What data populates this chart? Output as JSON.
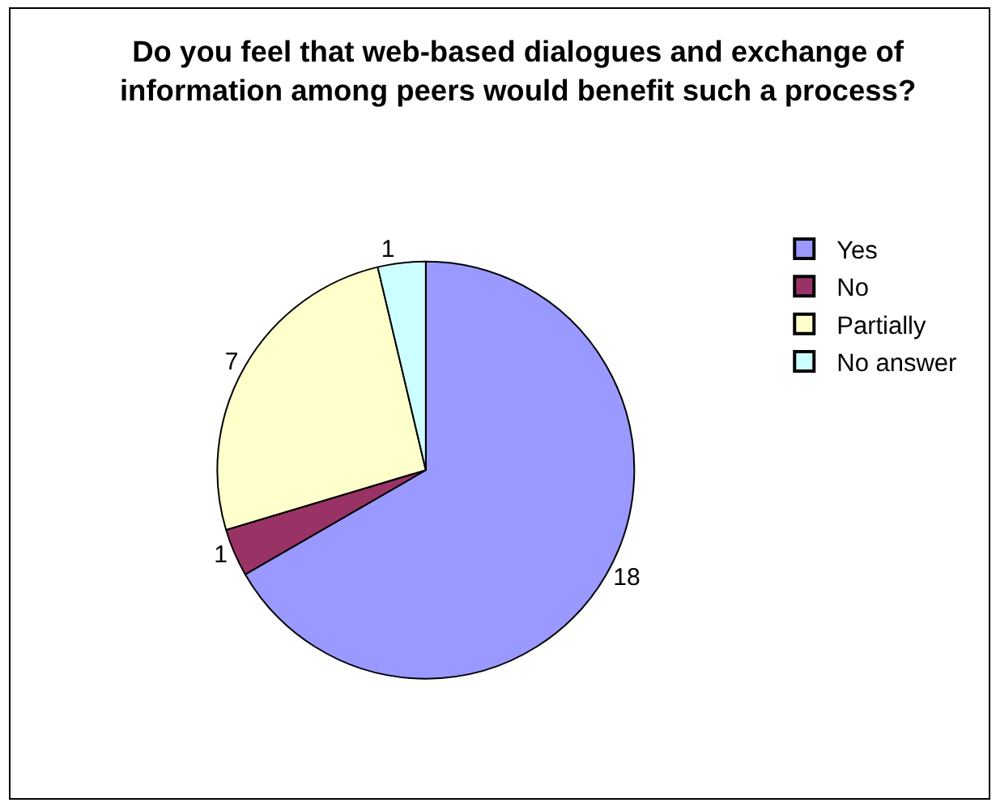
{
  "chart_data": {
    "type": "pie",
    "title": "Do you feel that web-based dialogues and exchange of\ninformation among peers would benefit such a process?",
    "categories": [
      "Yes",
      "No",
      "Partially",
      "No answer"
    ],
    "values": [
      18,
      1,
      7,
      1
    ],
    "colors": [
      "#9999ff",
      "#993366",
      "#ffffcc",
      "#ccffff"
    ],
    "data_labels": true,
    "legend": "right"
  }
}
